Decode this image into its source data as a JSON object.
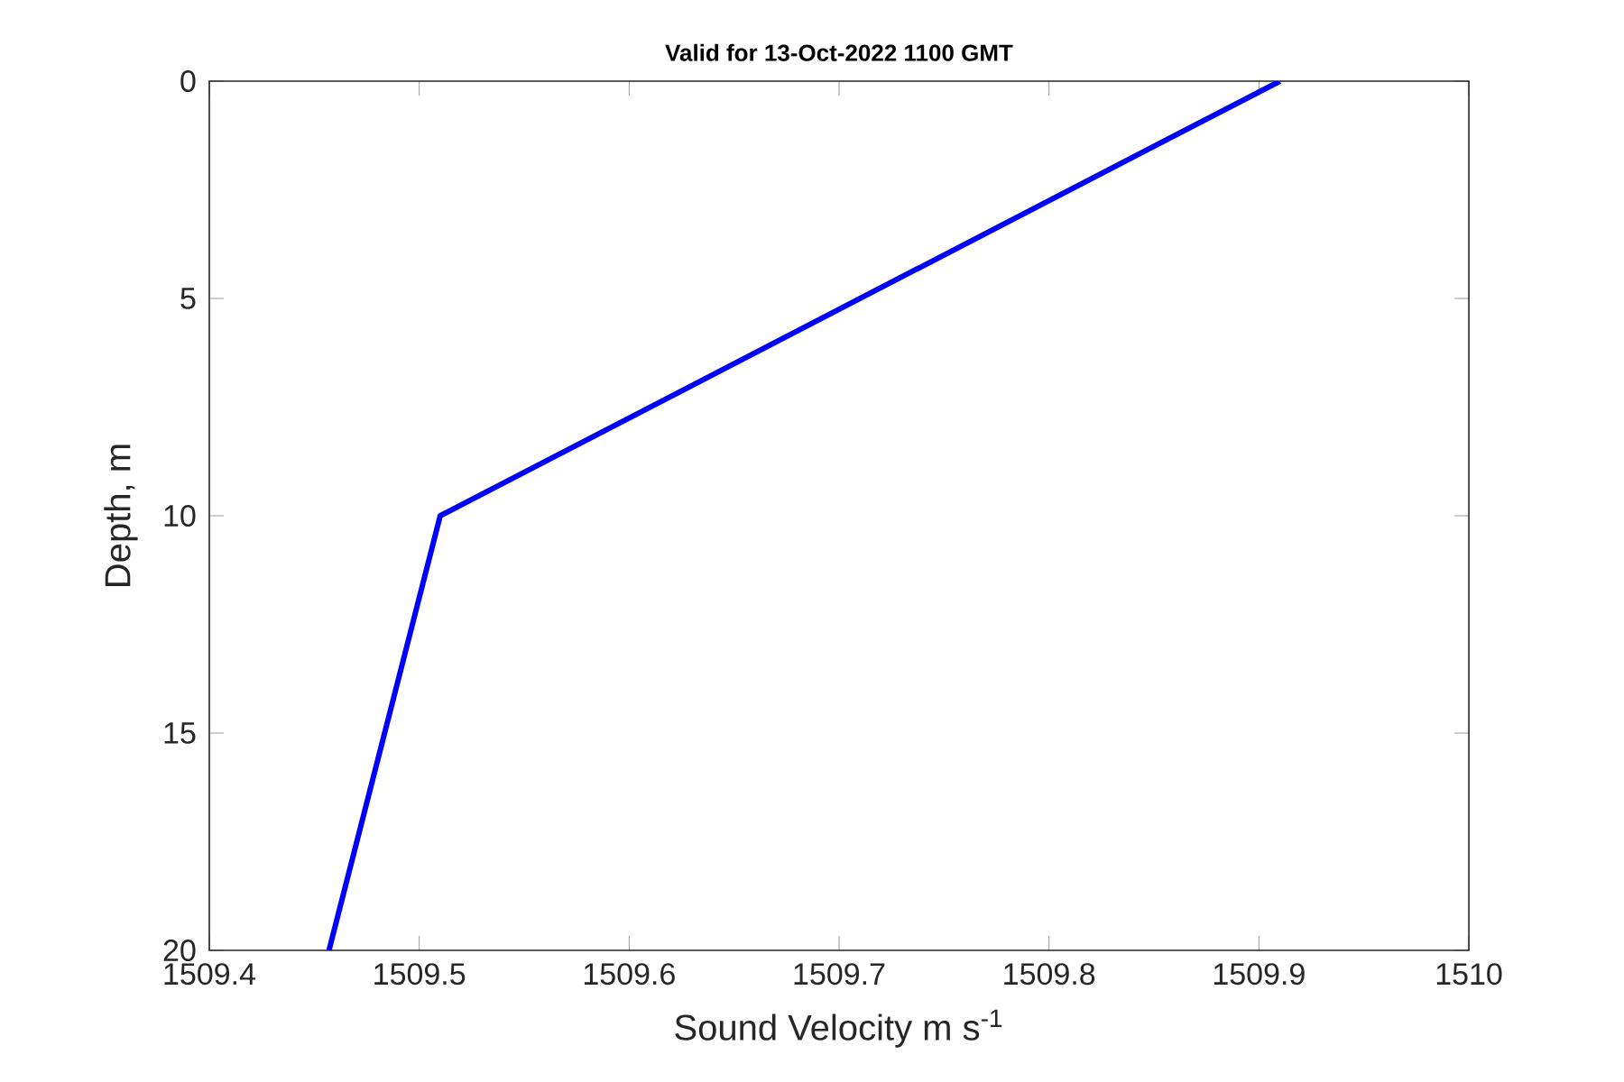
{
  "chart_data": {
    "type": "line",
    "title": "Valid for 13-Oct-2022 1100 GMT",
    "xlabel": "Sound Velocity m s$^{-1}$",
    "ylabel": "Depth, m",
    "series": [
      {
        "color": "#0000ff",
        "x": [
          1509.91,
          1509.51,
          1509.457
        ],
        "values": [
          0,
          10,
          20
        ]
      }
    ],
    "xlim": [
      1509.4,
      1510
    ],
    "xticks": [
      1509.4,
      1509.5,
      1509.6,
      1509.7,
      1509.8,
      1509.9,
      1510
    ],
    "ylim": [
      20,
      0
    ],
    "yticks": [
      0,
      5,
      10,
      15,
      20
    ],
    "grid": false,
    "marker": "none",
    "line_style": "solid"
  }
}
